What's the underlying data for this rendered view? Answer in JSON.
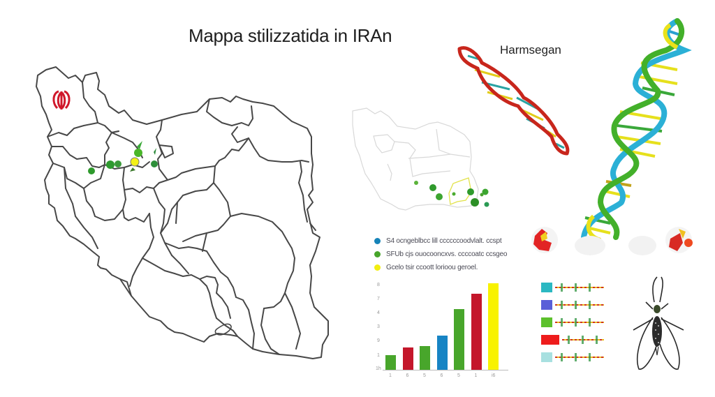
{
  "title": "Mappa stilizzatida in IRAn",
  "dna_label": "Harmsegan",
  "colors": {
    "green": "#3fa22a",
    "red": "#c21a2a",
    "blue": "#1a86c4",
    "yellow": "#f8f000",
    "teal": "#2bb8c2",
    "outline": "#444444"
  },
  "legend": [
    {
      "color": "#1683b8",
      "label": "S4 ocngeblbcc lill ccccccoodvlalt. ccspt"
    },
    {
      "color": "#47a52a",
      "label": "SFUb cjs ouocooncxvs. ccccoatc ccsgeo"
    },
    {
      "color": "#f2ee10",
      "label": "Gcelo tsir ccoott lorioou geroel."
    }
  ],
  "chart_data": {
    "type": "bar",
    "title": "",
    "xlabel": "",
    "ylabel": "",
    "categories": [
      "1",
      "6",
      "5",
      "6",
      "5",
      "1",
      "i6"
    ],
    "values": [
      1.1,
      1.7,
      1.8,
      2.6,
      4.6,
      5.8,
      6.6
    ],
    "colors": [
      "#48a62b",
      "#c4172b",
      "#48a62b",
      "#1784c4",
      "#48a62b",
      "#c4172b",
      "#f8f200"
    ],
    "y_ticks": [
      "1h",
      "1",
      "9",
      "3",
      "4",
      "7",
      "8"
    ],
    "ylim": [
      0,
      7
    ],
    "grid": false,
    "legend_position": "above"
  },
  "gene_bands": [
    {
      "color": "#2bb8c2"
    },
    {
      "color": "#5a5fd8"
    },
    {
      "color": "#5cc02c"
    },
    {
      "color": "#ee1c1c"
    },
    {
      "color": "#a8e0e0"
    }
  ],
  "icons": {
    "flag_emblem": "iran-emblem-icon",
    "mosquito": "mosquito-icon",
    "dna": "dna-helix-icon"
  }
}
